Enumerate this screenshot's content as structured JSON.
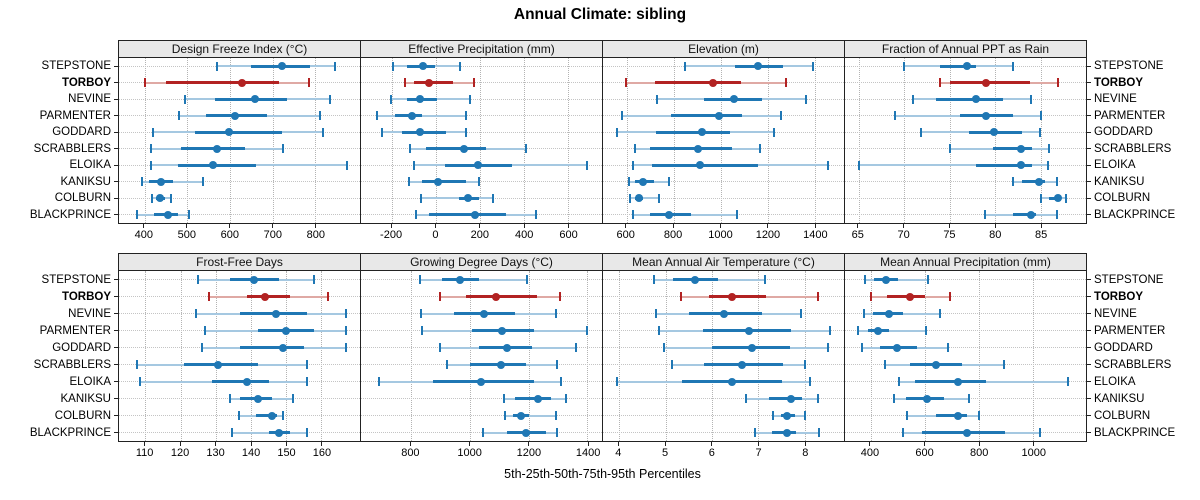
{
  "title": "Annual Climate: sibling",
  "xlabel": "5th-25th-50th-75th-95th Percentiles",
  "sites": [
    "STEPSTONE",
    "TORBOY",
    "NEVINE",
    "PARMENTER",
    "GODDARD",
    "SCRABBLERS",
    "ELOIKA",
    "KANIKSU",
    "COLBURN",
    "BLACKPRINCE"
  ],
  "highlight_site": "TORBOY",
  "percentiles": [
    "5th",
    "25th",
    "50th",
    "75th",
    "95th"
  ],
  "colors": {
    "normal": "#1f77b4",
    "normal_light": "#a5c8e1",
    "highlight": "#b22222",
    "highlight_light": "#dfa9a4",
    "grid": "#b3b3b3",
    "header_bg": "#e8e8e8",
    "border": "#222222"
  },
  "chart_data": {
    "type": "scatter",
    "subtype": "horizontal-percentile-intervals",
    "legend_position": "none",
    "grid": "dotted",
    "panels": [
      {
        "title": "Design Freeze Index (°C)",
        "row": 0,
        "col": 0,
        "xlim": [
          340,
          905
        ],
        "ticks": [
          400,
          500,
          600,
          700,
          800
        ],
        "series": [
          {
            "name": "STEPSTONE",
            "values": [
              570,
              650,
              723,
              788,
              847
            ]
          },
          {
            "name": "TORBOY",
            "values": [
              400,
              450,
              628,
              714,
              786
            ]
          },
          {
            "name": "NEVINE",
            "values": [
              495,
              565,
              660,
              734,
              834
            ]
          },
          {
            "name": "PARMENTER",
            "values": [
              480,
              545,
              611,
              686,
              811
            ]
          },
          {
            "name": "GODDARD",
            "values": [
              420,
              519,
              598,
              721,
              819
            ]
          },
          {
            "name": "SCRABBLERS",
            "values": [
              415,
              485,
              570,
              635,
              724
            ]
          },
          {
            "name": "ELOIKA",
            "values": [
              414,
              478,
              560,
              661,
              874
            ]
          },
          {
            "name": "KANIKSU",
            "values": [
              395,
              410,
              438,
              466,
              537
            ]
          },
          {
            "name": "COLBURN",
            "values": [
              417,
              426,
              436,
              449,
              463
            ]
          },
          {
            "name": "BLACKPRINCE",
            "values": [
              382,
              423,
              455,
              478,
              503
            ]
          }
        ]
      },
      {
        "title": "Effective Precipitation (mm)",
        "row": 0,
        "col": 1,
        "xlim": [
          -340,
          755
        ],
        "ticks": [
          -200,
          0,
          200,
          400,
          600
        ],
        "series": [
          {
            "name": "STEPSTONE",
            "values": [
              -195,
              -130,
              -60,
              -5,
              108
            ]
          },
          {
            "name": "TORBOY",
            "values": [
              -140,
              -100,
              -33,
              78,
              175
            ]
          },
          {
            "name": "NEVINE",
            "values": [
              -203,
              -130,
              -71,
              4,
              154
            ]
          },
          {
            "name": "PARMENTER",
            "values": [
              -266,
              -184,
              -110,
              -64,
              135
            ]
          },
          {
            "name": "GODDARD",
            "values": [
              -244,
              -154,
              -70,
              45,
              135
            ]
          },
          {
            "name": "SCRABBLERS",
            "values": [
              -116,
              -45,
              126,
              228,
              411
            ]
          },
          {
            "name": "ELOIKA",
            "values": [
              -97,
              40,
              190,
              348,
              689
            ]
          },
          {
            "name": "KANIKSU",
            "values": [
              -120,
              -64,
              10,
              135,
              195
            ]
          },
          {
            "name": "COLBURN",
            "values": [
              -68,
              104,
              148,
              196,
              258
            ]
          },
          {
            "name": "BLACKPRINCE",
            "values": [
              -92,
              -31,
              178,
              318,
              457
            ]
          }
        ]
      },
      {
        "title": "Elevation (m)",
        "row": 0,
        "col": 2,
        "xlim": [
          500,
          1525
        ],
        "ticks": [
          600,
          800,
          1000,
          1200,
          1400
        ],
        "series": [
          {
            "name": "STEPSTONE",
            "values": [
              848,
              1060,
              1160,
              1266,
              1394
            ]
          },
          {
            "name": "TORBOY",
            "values": [
              598,
              720,
              969,
              1089,
              1279
            ]
          },
          {
            "name": "NEVINE",
            "values": [
              731,
              931,
              1056,
              1175,
              1362
            ]
          },
          {
            "name": "PARMENTER",
            "values": [
              581,
              790,
              994,
              1091,
              1259
            ]
          },
          {
            "name": "GODDARD",
            "values": [
              561,
              724,
              919,
              1042,
              1229
            ]
          },
          {
            "name": "SCRABBLERS",
            "values": [
              638,
              702,
              902,
              1049,
              1166
            ]
          },
          {
            "name": "ELOIKA",
            "values": [
              628,
              710,
              914,
              1161,
              1456
            ]
          },
          {
            "name": "KANIKSU",
            "values": [
              610,
              635,
              670,
              715,
              780
            ]
          },
          {
            "name": "COLBURN",
            "values": [
              616,
              634,
              651,
              670,
              740
            ]
          },
          {
            "name": "BLACKPRINCE",
            "values": [
              628,
              698,
              780,
              874,
              1068
            ]
          }
        ]
      },
      {
        "title": "Fraction of Annual PPT as Rain",
        "row": 0,
        "col": 3,
        "xlim": [
          63.5,
          90
        ],
        "ticks": [
          65,
          70,
          75,
          80,
          85
        ],
        "series": [
          {
            "name": "STEPSTONE",
            "values": [
              70,
              74,
              76.9,
              77.9,
              82
            ]
          },
          {
            "name": "TORBOY",
            "values": [
              74,
              75,
              79,
              83.8,
              86.9
            ]
          },
          {
            "name": "NEVINE",
            "values": [
              71,
              73.5,
              77.9,
              80.9,
              84
            ]
          },
          {
            "name": "PARMENTER",
            "values": [
              69,
              76.2,
              79,
              82,
              85
            ]
          },
          {
            "name": "GODDARD",
            "values": [
              71.9,
              77.1,
              79.9,
              83,
              84.9
            ]
          },
          {
            "name": "SCRABBLERS",
            "values": [
              75,
              79.8,
              82.9,
              84.1,
              85.9
            ]
          },
          {
            "name": "ELOIKA",
            "values": [
              65,
              77.9,
              82.9,
              84.1,
              85.8
            ]
          },
          {
            "name": "KANIKSU",
            "values": [
              82,
              83,
              84.8,
              85.5,
              86.8
            ]
          },
          {
            "name": "COLBURN",
            "values": [
              85,
              85.9,
              86.9,
              87.3,
              87.8
            ]
          },
          {
            "name": "BLACKPRINCE",
            "values": [
              78.9,
              82,
              84,
              84.5,
              86.8
            ]
          }
        ]
      },
      {
        "title": "Frost-Free Days",
        "row": 1,
        "col": 0,
        "xlim": [
          102.5,
          171
        ],
        "ticks": [
          110,
          120,
          130,
          140,
          150,
          160
        ],
        "series": [
          {
            "name": "STEPSTONE",
            "values": [
              125,
              134,
              141,
              148,
              158
            ]
          },
          {
            "name": "TORBOY",
            "values": [
              128,
              139,
              144,
              151,
              162
            ]
          },
          {
            "name": "NEVINE",
            "values": [
              124.5,
              137,
              147,
              156,
              167
            ]
          },
          {
            "name": "PARMENTER",
            "values": [
              127,
              142,
              150,
              158,
              167
            ]
          },
          {
            "name": "GODDARD",
            "values": [
              126,
              137,
              149,
              155,
              167
            ]
          },
          {
            "name": "SCRABBLERS",
            "values": [
              107.5,
              121,
              130.5,
              142,
              156
            ]
          },
          {
            "name": "ELOIKA",
            "values": [
              108.5,
              129,
              139,
              145,
              156
            ]
          },
          {
            "name": "KANIKSU",
            "values": [
              134,
              137,
              142,
              146,
              152
            ]
          },
          {
            "name": "COLBURN",
            "values": [
              136.5,
              141.5,
              146,
              147.5,
              149
            ]
          },
          {
            "name": "BLACKPRINCE",
            "values": [
              134.5,
              145,
              148,
              151,
              156
            ]
          }
        ]
      },
      {
        "title": "Growing Degree Days (°C)",
        "row": 1,
        "col": 1,
        "xlim": [
          630,
          1450
        ],
        "ticks": [
          800,
          1000,
          1200,
          1400
        ],
        "series": [
          {
            "name": "STEPSTONE",
            "values": [
              830,
              905,
              966,
              1031,
              1194
            ]
          },
          {
            "name": "TORBOY",
            "values": [
              900,
              987,
              1089,
              1228,
              1306
            ]
          },
          {
            "name": "NEVINE",
            "values": [
              833,
              948,
              1048,
              1153,
              1292
            ]
          },
          {
            "name": "PARMENTER",
            "values": [
              836,
              1009,
              1109,
              1220,
              1398
            ]
          },
          {
            "name": "GODDARD",
            "values": [
              900,
              1033,
              1126,
              1211,
              1363
            ]
          },
          {
            "name": "SCRABBLERS",
            "values": [
              922,
              1000,
              1106,
              1192,
              1298
            ]
          },
          {
            "name": "ELOIKA",
            "values": [
              691,
              876,
              1037,
              1217,
              1311
            ]
          },
          {
            "name": "KANIKSU",
            "values": [
              1117,
              1153,
              1233,
              1276,
              1326
            ]
          },
          {
            "name": "COLBURN",
            "values": [
              1119,
              1148,
              1174,
              1202,
              1294
            ]
          },
          {
            "name": "BLACKPRINCE",
            "values": [
              1044,
              1126,
              1192,
              1258,
              1296
            ]
          }
        ]
      },
      {
        "title": "Mean Annual Air Temperature (°C)",
        "row": 1,
        "col": 2,
        "xlim": [
          3.65,
          8.85
        ],
        "ticks": [
          4,
          5,
          6,
          7,
          8
        ],
        "series": [
          {
            "name": "STEPSTONE",
            "values": [
              4.74,
              5.17,
              5.64,
              6.14,
              7.14
            ]
          },
          {
            "name": "TORBOY",
            "values": [
              5.34,
              5.93,
              6.44,
              7.17,
              8.28
            ]
          },
          {
            "name": "NEVINE",
            "values": [
              4.79,
              5.5,
              6.25,
              7.09,
              7.92
            ]
          },
          {
            "name": "PARMENTER",
            "values": [
              4.86,
              5.8,
              6.8,
              7.71,
              8.54
            ]
          },
          {
            "name": "GODDARD",
            "values": [
              4.96,
              6.01,
              6.86,
              7.69,
              8.51
            ]
          },
          {
            "name": "SCRABBLERS",
            "values": [
              5.14,
              5.84,
              6.64,
              7.54,
              8.01
            ]
          },
          {
            "name": "ELOIKA",
            "values": [
              3.96,
              5.36,
              6.44,
              7.51,
              8.12
            ]
          },
          {
            "name": "KANIKSU",
            "values": [
              6.73,
              7.24,
              7.71,
              7.94,
              8.29
            ]
          },
          {
            "name": "COLBURN",
            "values": [
              7.31,
              7.48,
              7.62,
              7.79,
              8.0
            ]
          },
          {
            "name": "BLACKPRINCE",
            "values": [
              6.93,
              7.3,
              7.61,
              7.82,
              8.31
            ]
          }
        ]
      },
      {
        "title": "Mean Annual Precipitation (mm)",
        "row": 1,
        "col": 3,
        "xlim": [
          305,
          1195
        ],
        "ticks": [
          400,
          600,
          800,
          1000
        ],
        "series": [
          {
            "name": "STEPSTONE",
            "values": [
              378,
              412,
              455,
              500,
              612
            ]
          },
          {
            "name": "TORBOY",
            "values": [
              402,
              461,
              544,
              599,
              693
            ]
          },
          {
            "name": "NEVINE",
            "values": [
              375,
              409,
              467,
              520,
              655
            ]
          },
          {
            "name": "PARMENTER",
            "values": [
              354,
              390,
              427,
              467,
              605
            ]
          },
          {
            "name": "GODDARD",
            "values": [
              366,
              435,
              496,
              572,
              685
            ]
          },
          {
            "name": "SCRABBLERS",
            "values": [
              451,
              544,
              642,
              736,
              893
            ]
          },
          {
            "name": "ELOIKA",
            "values": [
              505,
              562,
              724,
              824,
              1127
            ]
          },
          {
            "name": "KANIKSU",
            "values": [
              485,
              530,
              608,
              672,
              764
            ]
          },
          {
            "name": "COLBURN",
            "values": [
              533,
              642,
              724,
              757,
              800
            ]
          },
          {
            "name": "BLACKPRINCE",
            "values": [
              518,
              588,
              754,
              897,
              1024
            ]
          }
        ]
      }
    ]
  }
}
